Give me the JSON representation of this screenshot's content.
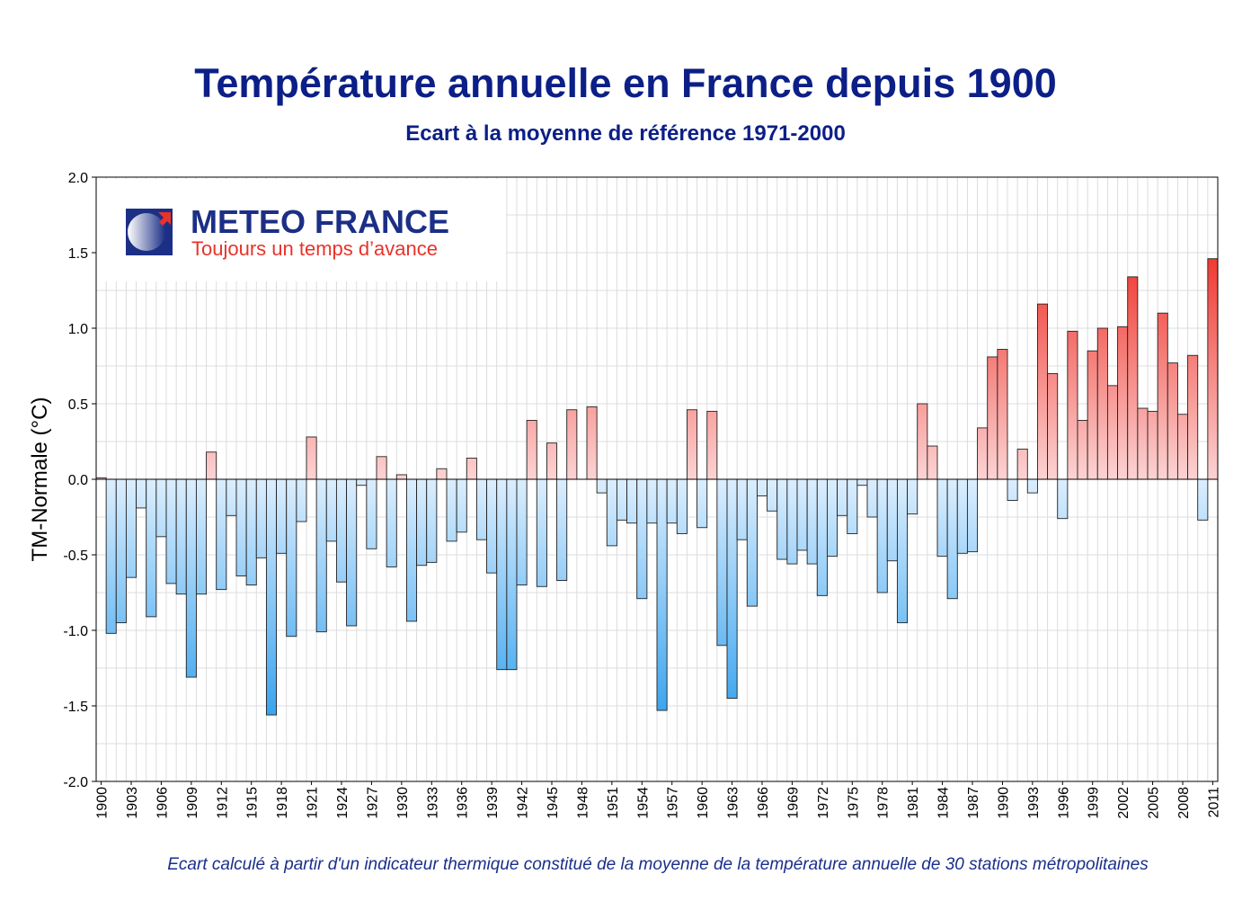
{
  "header": {
    "title": "Température annuelle en France depuis 1900",
    "subtitle": "Ecart à la moyenne de référence 1971-2000"
  },
  "logo": {
    "brand": "METEO FRANCE",
    "tagline": "Toujours un temps d’avance"
  },
  "footnote": "Ecart calculé à partir d'un indicateur thermique constitué de la moyenne de la température annuelle de 30 stations métropolitaines",
  "colors": {
    "title": "#0c1f87",
    "positive_dark": "#f03a32",
    "positive_light": "#fcd3d3",
    "negative_dark": "#3aa4ee",
    "negative_light": "#dceefe"
  },
  "chart_data": {
    "type": "bar",
    "title": "Température annuelle en France depuis 1900",
    "subtitle": "Ecart à la moyenne de référence 1971-2000",
    "xlabel": "",
    "ylabel": "TM-Normale (°C)",
    "ylim": [
      -2.0,
      2.0
    ],
    "yticks": [
      "-2.0",
      "-1.5",
      "-1.0",
      "-0.5",
      "0.0",
      "0.5",
      "1.0",
      "1.5",
      "2.0"
    ],
    "xticks": [
      "1900",
      "1903",
      "1906",
      "1909",
      "1912",
      "1915",
      "1918",
      "1921",
      "1924",
      "1927",
      "1930",
      "1933",
      "1936",
      "1939",
      "1942",
      "1945",
      "1948",
      "1951",
      "1954",
      "1957",
      "1960",
      "1963",
      "1966",
      "1969",
      "1972",
      "1975",
      "1978",
      "1981",
      "1984",
      "1987",
      "1990",
      "1993",
      "1996",
      "1999",
      "2002",
      "2005",
      "2008",
      "2011"
    ],
    "grid": true,
    "categories": [
      1900,
      1901,
      1902,
      1903,
      1904,
      1905,
      1906,
      1907,
      1908,
      1909,
      1910,
      1911,
      1912,
      1913,
      1914,
      1915,
      1916,
      1917,
      1918,
      1919,
      1920,
      1921,
      1922,
      1923,
      1924,
      1925,
      1926,
      1927,
      1928,
      1929,
      1930,
      1931,
      1932,
      1933,
      1934,
      1935,
      1936,
      1937,
      1938,
      1939,
      1940,
      1941,
      1942,
      1943,
      1944,
      1945,
      1946,
      1947,
      1948,
      1949,
      1950,
      1951,
      1952,
      1953,
      1954,
      1955,
      1956,
      1957,
      1958,
      1959,
      1960,
      1961,
      1962,
      1963,
      1964,
      1965,
      1966,
      1967,
      1968,
      1969,
      1970,
      1971,
      1972,
      1973,
      1974,
      1975,
      1976,
      1977,
      1978,
      1979,
      1980,
      1981,
      1982,
      1983,
      1984,
      1985,
      1986,
      1987,
      1988,
      1989,
      1990,
      1991,
      1992,
      1993,
      1994,
      1995,
      1996,
      1997,
      1998,
      1999,
      2000,
      2001,
      2002,
      2003,
      2004,
      2005,
      2006,
      2007,
      2008,
      2009,
      2010,
      2011
    ],
    "values": [
      0.01,
      -1.02,
      -0.95,
      -0.65,
      -0.19,
      -0.91,
      -0.38,
      -0.69,
      -0.76,
      -1.31,
      -0.76,
      0.18,
      -0.73,
      -0.24,
      -0.64,
      -0.7,
      -0.52,
      -1.56,
      -0.49,
      -1.04,
      -0.28,
      0.28,
      -1.01,
      -0.41,
      -0.68,
      -0.97,
      -0.04,
      -0.46,
      0.15,
      -0.58,
      0.03,
      -0.94,
      -0.57,
      -0.55,
      0.07,
      -0.41,
      -0.35,
      0.14,
      -0.4,
      -0.62,
      -1.26,
      -1.26,
      -0.7,
      0.39,
      -0.71,
      0.24,
      -0.67,
      0.46,
      0.0,
      0.48,
      -0.09,
      -0.44,
      -0.27,
      -0.29,
      -0.79,
      -0.29,
      -1.53,
      -0.29,
      -0.36,
      0.46,
      -0.32,
      0.45,
      -1.1,
      -1.45,
      -0.4,
      -0.84,
      -0.11,
      -0.21,
      -0.53,
      -0.56,
      -0.47,
      -0.56,
      -0.77,
      -0.51,
      -0.24,
      -0.36,
      -0.04,
      -0.25,
      -0.75,
      -0.54,
      -0.95,
      -0.23,
      0.5,
      0.22,
      -0.51,
      -0.79,
      -0.49,
      -0.48,
      0.34,
      0.81,
      0.86,
      -0.14,
      0.2,
      -0.09,
      1.16,
      0.7,
      -0.26,
      0.98,
      0.39,
      0.85,
      1.0,
      0.62,
      1.01,
      1.34,
      0.47,
      0.45,
      1.1,
      0.77,
      0.43,
      0.82,
      -0.27,
      1.46
    ]
  }
}
